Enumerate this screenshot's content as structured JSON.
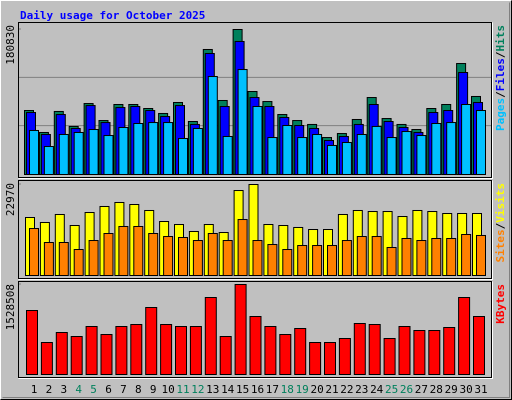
{
  "chart_data": {
    "type": "bar",
    "title": "Daily usage for October 2025",
    "categories": [
      "1",
      "2",
      "3",
      "4",
      "5",
      "6",
      "7",
      "8",
      "9",
      "10",
      "11",
      "12",
      "13",
      "14",
      "15",
      "16",
      "17",
      "18",
      "19",
      "20",
      "21",
      "22",
      "23",
      "24",
      "25",
      "26",
      "27",
      "28",
      "29",
      "30",
      "31"
    ],
    "category_colors": [
      "#000000",
      "#000000",
      "#000000",
      "#00805c",
      "#00805c",
      "#000000",
      "#000000",
      "#000000",
      "#000000",
      "#000000",
      "#00805c",
      "#00805c",
      "#000000",
      "#000000",
      "#000000",
      "#000000",
      "#000000",
      "#00805c",
      "#00805c",
      "#000000",
      "#000000",
      "#000000",
      "#000000",
      "#000000",
      "#00805c",
      "#00805c",
      "#000000",
      "#000000",
      "#000000",
      "#000000",
      "#000000"
    ],
    "separator": "/",
    "panels": [
      {
        "ylim": [
          0,
          180830
        ],
        "yticks": [
          180830
        ],
        "gridlines": [
          60277,
          120553
        ],
        "series": [
          {
            "name": "Hits",
            "color": "#00805c",
            "values": [
              79800,
              52400,
              78600,
              59900,
              88500,
              67300,
              87300,
              87300,
              82300,
              76100,
              89800,
              66100,
              155900,
              92300,
              180830,
              103500,
              91000,
              74800,
              67300,
              62400,
              46100,
              51100,
              68600,
              96000,
              69800,
              62400,
              56100,
              82300,
              87300,
              138400,
              97300
            ]
          },
          {
            "name": "Files",
            "color": "#0000ff",
            "values": [
              77300,
              49900,
              74800,
              57400,
              86000,
              64800,
              83500,
              84800,
              79800,
              72300,
              86000,
              62400,
              150900,
              84800,
              165900,
              96000,
              84800,
              71100,
              61100,
              57400,
              42400,
              47400,
              62400,
              87300,
              66100,
              58600,
              52400,
              77300,
              79800,
              127200,
              89800
            ]
          },
          {
            "name": "Pages",
            "color": "#00c0ff",
            "values": [
              54900,
              34900,
              49900,
              52400,
              56100,
              48600,
              58600,
              63600,
              64800,
              64800,
              44900,
              57400,
              122200,
              47400,
              130900,
              84800,
              46100,
              61100,
              46100,
              49900,
              36200,
              39900,
              49900,
              59900,
              46100,
              53600,
              48600,
              63600,
              64800,
              87300,
              79800
            ]
          }
        ]
      },
      {
        "ylim": [
          0,
          22970
        ],
        "yticks": [
          22970
        ],
        "series": [
          {
            "name": "Visits",
            "color": "#ffff00",
            "values": [
              14640,
              13380,
              15400,
              12620,
              15900,
              17420,
              18430,
              17920,
              16410,
              13630,
              12870,
              11110,
              12870,
              10850,
              21450,
              22970,
              12870,
              12620,
              12120,
              11610,
              11610,
              15400,
              16410,
              16150,
              16150,
              14890,
              16410,
              16150,
              15650,
              15650,
              15650
            ]
          },
          {
            "name": "Sites",
            "color": "#ff8000",
            "values": [
              11860,
              8330,
              8330,
              6560,
              8830,
              10600,
              12370,
              12370,
              10600,
              9840,
              9590,
              8830,
              10600,
              8830,
              14130,
              8830,
              7820,
              6560,
              7570,
              7570,
              7570,
              8830,
              9840,
              9840,
              7070,
              9340,
              8830,
              9340,
              9340,
              10350,
              10100
            ]
          }
        ]
      },
      {
        "ylim": [
          0,
          1528508
        ],
        "yticks": [
          1528508
        ],
        "series": [
          {
            "name": "KBytes",
            "color": "#ff0000",
            "values": [
              1086900,
              543500,
              713300,
              645400,
              815200,
              679300,
              815200,
              849200,
              1137900,
              849200,
              815200,
              815200,
              1307700,
              645400,
              1528508,
              985000,
              815200,
              679300,
              781200,
              543500,
              543500,
              611400,
              866100,
              849200,
              611400,
              815200,
              747300,
              747300,
              798200,
              1307700,
              985000
            ]
          }
        ]
      }
    ]
  }
}
